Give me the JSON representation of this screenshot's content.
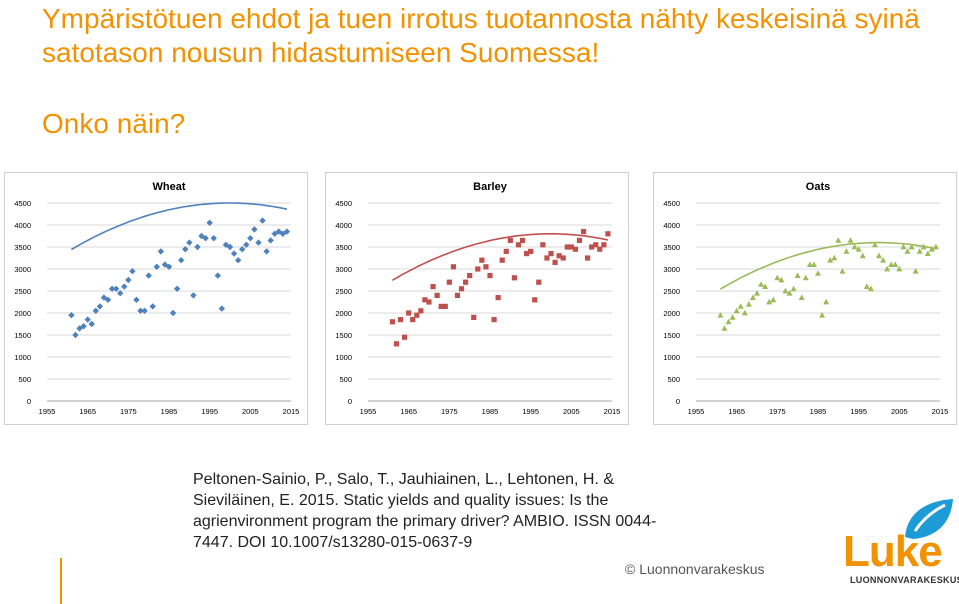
{
  "slide": {
    "headline": "Ympäristötuen ehdot ja tuen irrotus tuotannosta nähty keskeisinä syinä satotason nousun hidastumiseen Suomessa!",
    "subhead": "Onko näin?",
    "citation": "Peltonen-Sainio, P., Salo, T., Jauhiainen, L., Lehtonen, H. & Sieviläinen, E. 2015. Static yields and quality issues: Is the agrienvironment program the primary driver? AMBIO. ISSN 0044-7447. DOI 10.1007/s13280-015-0637-9",
    "copyright": "© Luonnonvarakeskus",
    "logo_word": "Luke",
    "logo_sub": "LUONNONVARAKESKUS",
    "brand_color": "#f39200"
  },
  "chart_data": [
    {
      "type": "scatter",
      "title": "Wheat",
      "marker": "diamond",
      "color": "#4f81bd",
      "trend_color": "#4f81bd",
      "xlim": [
        1955,
        2015
      ],
      "ylim": [
        0,
        4500
      ],
      "xticks": [
        1955,
        1965,
        1975,
        1985,
        1995,
        2005,
        2015
      ],
      "yticks": [
        0,
        500,
        1000,
        1500,
        2000,
        2500,
        3000,
        3500,
        4000,
        4500
      ],
      "x": [
        1961,
        1962,
        1963,
        1964,
        1965,
        1966,
        1967,
        1968,
        1969,
        1970,
        1971,
        1972,
        1973,
        1974,
        1975,
        1976,
        1977,
        1978,
        1979,
        1980,
        1981,
        1982,
        1983,
        1984,
        1985,
        1986,
        1987,
        1988,
        1989,
        1990,
        1991,
        1992,
        1993,
        1994,
        1995,
        1996,
        1997,
        1998,
        1999,
        2000,
        2001,
        2002,
        2003,
        2004,
        2005,
        2006,
        2007,
        2008,
        2009,
        2010,
        2011,
        2012,
        2013,
        2014
      ],
      "y": [
        1950,
        1500,
        1650,
        1700,
        1850,
        1750,
        2050,
        2150,
        2350,
        2300,
        2550,
        2550,
        2450,
        2600,
        2750,
        2950,
        2300,
        2050,
        2050,
        2850,
        2150,
        3050,
        3400,
        3100,
        3050,
        2000,
        2550,
        3200,
        3450,
        3600,
        2400,
        3500,
        3750,
        3700,
        4050,
        3700,
        2850,
        2100,
        3550,
        3500,
        3350,
        3200,
        3450,
        3550,
        3700,
        3900,
        3600,
        4100,
        3400,
        3650,
        3800,
        3850,
        3800,
        3850
      ],
      "trend": {
        "type": "quadratic",
        "a": -0.6993,
        "b": 2797.0,
        "c": -2792300
      }
    },
    {
      "type": "scatter",
      "title": "Barley",
      "marker": "square",
      "color": "#c0504d",
      "trend_color": "#c0504d",
      "xlim": [
        1955,
        2015
      ],
      "ylim": [
        0,
        4500
      ],
      "xticks": [
        1955,
        1965,
        1975,
        1985,
        1995,
        2005,
        2015
      ],
      "yticks": [
        0,
        500,
        1000,
        1500,
        2000,
        2500,
        3000,
        3500,
        4000,
        4500
      ],
      "x": [
        1961,
        1962,
        1963,
        1964,
        1965,
        1966,
        1967,
        1968,
        1969,
        1970,
        1971,
        1972,
        1973,
        1974,
        1975,
        1976,
        1977,
        1978,
        1979,
        1980,
        1981,
        1982,
        1983,
        1984,
        1985,
        1986,
        1987,
        1988,
        1989,
        1990,
        1991,
        1992,
        1993,
        1994,
        1995,
        1996,
        1997,
        1998,
        1999,
        2000,
        2001,
        2002,
        2003,
        2004,
        2005,
        2006,
        2007,
        2008,
        2009,
        2010,
        2011,
        2012,
        2013,
        2014
      ],
      "y": [
        1800,
        1300,
        1850,
        1450,
        2000,
        1850,
        1950,
        2050,
        2300,
        2250,
        2600,
        2400,
        2150,
        2150,
        2700,
        3050,
        2400,
        2550,
        2700,
        2850,
        1900,
        3000,
        3200,
        3050,
        2850,
        1850,
        2350,
        3200,
        3400,
        3650,
        2800,
        3550,
        3650,
        3350,
        3400,
        2300,
        2700,
        3550,
        3250,
        3350,
        3150,
        3300,
        3250,
        3500,
        3500,
        3450,
        3650,
        3850,
        3250,
        3500,
        3550,
        3450,
        3550,
        3800
      ],
      "trend": {
        "type": "quadratic",
        "a": -0.6993,
        "b": 2797.0,
        "c": -2793000
      }
    },
    {
      "type": "scatter",
      "title": "Oats",
      "marker": "triangle",
      "color": "#9bbb59",
      "trend_color": "#9bbb59",
      "xlim": [
        1955,
        2015
      ],
      "ylim": [
        0,
        4500
      ],
      "xticks": [
        1955,
        1965,
        1975,
        1985,
        1995,
        2005,
        2015
      ],
      "yticks": [
        0,
        500,
        1000,
        1500,
        2000,
        2500,
        3000,
        3500,
        4000,
        4500
      ],
      "x": [
        1961,
        1962,
        1963,
        1964,
        1965,
        1966,
        1967,
        1968,
        1969,
        1970,
        1971,
        1972,
        1973,
        1974,
        1975,
        1976,
        1977,
        1978,
        1979,
        1980,
        1981,
        1982,
        1983,
        1984,
        1985,
        1986,
        1987,
        1988,
        1989,
        1990,
        1991,
        1992,
        1993,
        1994,
        1995,
        1996,
        1997,
        1998,
        1999,
        2000,
        2001,
        2002,
        2003,
        2004,
        2005,
        2006,
        2007,
        2008,
        2009,
        2010,
        2011,
        2012,
        2013,
        2014
      ],
      "y": [
        1950,
        1650,
        1800,
        1900,
        2050,
        2150,
        2000,
        2200,
        2350,
        2450,
        2650,
        2600,
        2250,
        2300,
        2800,
        2750,
        2500,
        2450,
        2550,
        2850,
        2350,
        2800,
        3100,
        3100,
        2900,
        1950,
        2250,
        3200,
        3250,
        3650,
        2950,
        3400,
        3650,
        3500,
        3450,
        3300,
        2600,
        2550,
        3550,
        3300,
        3200,
        3000,
        3100,
        3100,
        3000,
        3500,
        3400,
        3500,
        2950,
        3400,
        3500,
        3350,
        3450,
        3500
      ],
      "trend": {
        "type": "quadratic",
        "a": -0.6993,
        "b": 2797.0,
        "c": -2793200
      }
    }
  ]
}
